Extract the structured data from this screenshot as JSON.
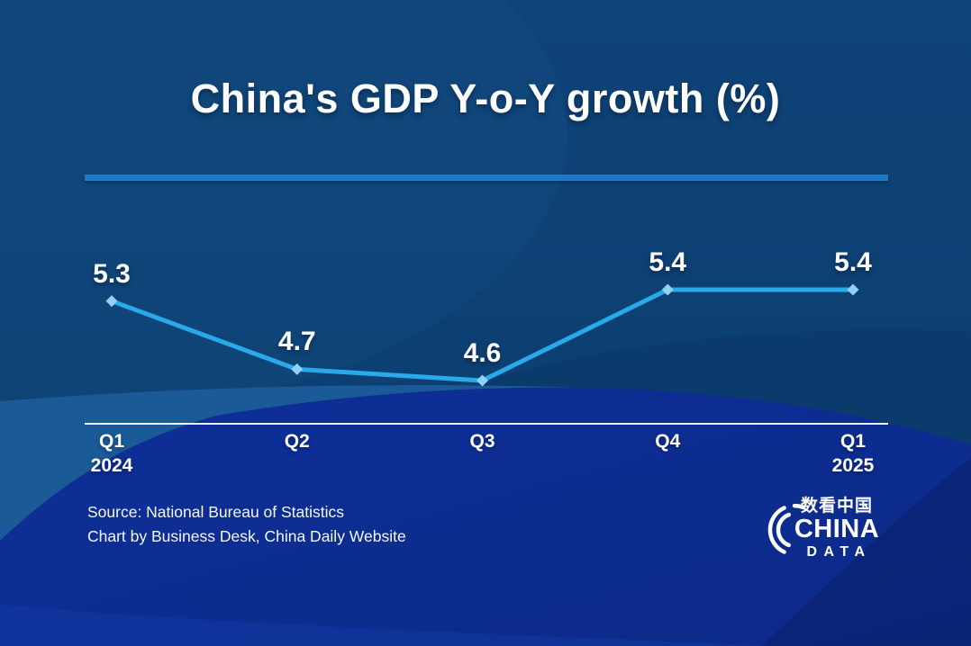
{
  "chart_data": {
    "type": "line",
    "title": "China's GDP Y-o-Y growth (%)",
    "categories": [
      "Q1 2024",
      "Q2",
      "Q3",
      "Q4",
      "Q1 2025"
    ],
    "values": [
      5.3,
      4.7,
      4.6,
      5.4,
      5.4
    ],
    "point_labels": [
      "5.3",
      "4.7",
      "4.6",
      "5.4",
      "5.4"
    ],
    "series": [
      {
        "name": "GDP Y-o-Y growth (%)",
        "values": [
          5.3,
          4.7,
          4.6,
          5.4,
          5.4
        ]
      }
    ],
    "xlabel": "",
    "ylabel": "",
    "ylim": [
      4.2,
      5.9
    ],
    "grid": false,
    "legend_position": "none",
    "marker_shape": "diamond"
  },
  "xaxis": {
    "labels": [
      {
        "quarter": "Q1",
        "year": "2024"
      },
      {
        "quarter": "Q2",
        "year": ""
      },
      {
        "quarter": "Q3",
        "year": ""
      },
      {
        "quarter": "Q4",
        "year": ""
      },
      {
        "quarter": "Q1",
        "year": "2025"
      }
    ]
  },
  "footer": {
    "source_line1": "Source: National Bureau of Statistics",
    "source_line2": "Chart by Business Desk, China Daily Website"
  },
  "logo": {
    "chinese": "数看中国",
    "name": "CHINA",
    "sub": "DATA"
  },
  "colors": {
    "background_top": "#0e4377",
    "background_royal": "#0d2c8f",
    "background_mid_band": "#1a5a96",
    "accent_divider": "#1e78c8",
    "line": "#29a9ea",
    "marker": "#90d1f5",
    "axis": "#eef3f8",
    "text": "#ffffff"
  }
}
